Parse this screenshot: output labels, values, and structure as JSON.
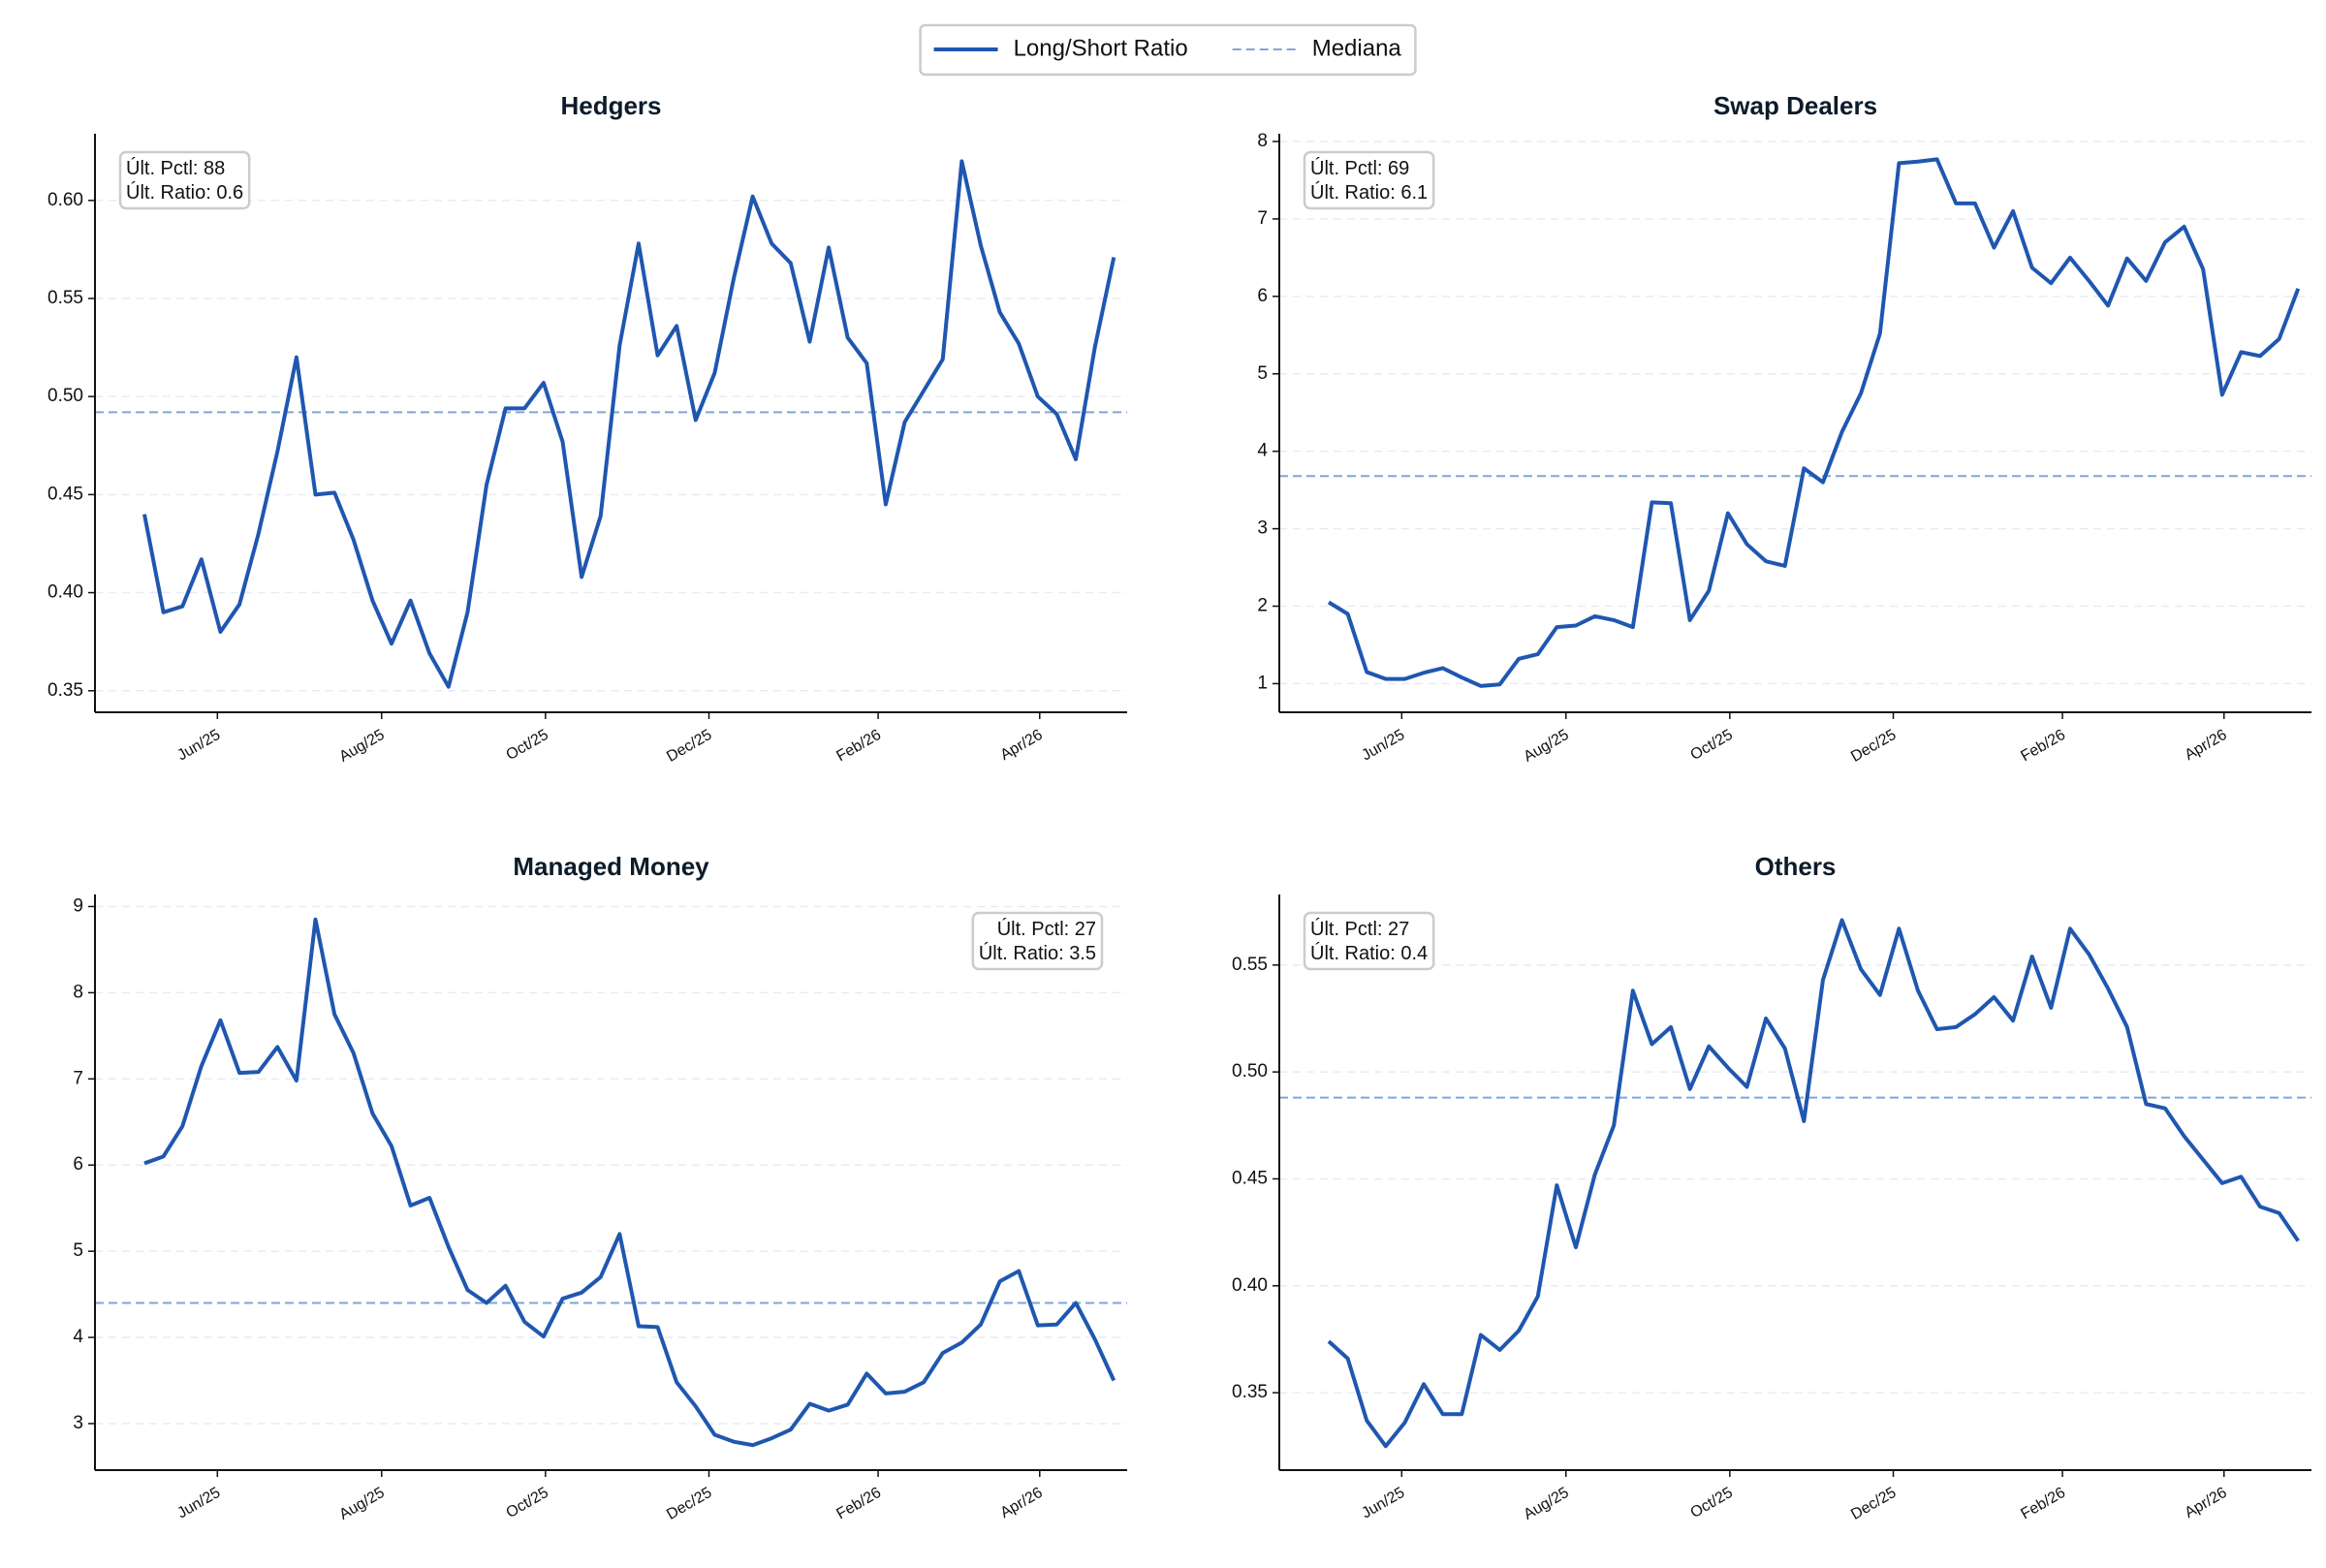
{
  "legend": [
    {
      "name": "Long/Short Ratio",
      "color": "#1f57b0",
      "style": "solid"
    },
    {
      "name": "Mediana",
      "color": "#7fa6d8",
      "style": "dashed"
    }
  ],
  "x_axis": {
    "x": [
      0,
      1,
      2,
      3,
      4,
      5,
      6,
      7,
      8,
      9,
      10,
      11,
      12,
      13,
      14,
      15,
      16,
      17,
      18,
      19,
      20,
      21,
      22,
      23,
      24,
      25,
      26,
      27,
      28,
      29,
      30,
      31,
      32,
      33,
      34,
      35,
      36,
      37,
      38,
      39,
      40,
      41,
      42,
      43,
      44,
      45,
      46,
      47,
      48,
      49,
      50,
      51
    ],
    "xlim": [
      -2.6,
      51.7
    ],
    "xticks": [
      {
        "value": 3.84,
        "label": "Jun/25"
      },
      {
        "value": 12.48,
        "label": "Aug/25"
      },
      {
        "value": 21.1,
        "label": "Oct/25"
      },
      {
        "value": 29.7,
        "label": "Dec/25"
      },
      {
        "value": 38.6,
        "label": "Feb/26"
      },
      {
        "value": 47.1,
        "label": "Apr/26"
      }
    ]
  },
  "chart_data": [
    {
      "type": "line",
      "title": "Hedgers",
      "color": "#1f57b0",
      "median_color": "#7fa6d8",
      "grid": true,
      "annotation_loc": "upper left",
      "annotation": [
        "Últ. Pctl: 88",
        "Últ. Ratio: 0.6"
      ],
      "values": [
        0.44,
        0.39,
        0.393,
        0.417,
        0.38,
        0.394,
        0.43,
        0.472,
        0.52,
        0.45,
        0.451,
        0.427,
        0.396,
        0.374,
        0.396,
        0.369,
        0.352,
        0.39,
        0.455,
        0.494,
        0.494,
        0.507,
        0.477,
        0.408,
        0.439,
        0.526,
        0.578,
        0.521,
        0.536,
        0.488,
        0.512,
        0.56,
        0.602,
        0.578,
        0.568,
        0.528,
        0.576,
        0.53,
        0.517,
        0.445,
        0.487,
        0.503,
        0.519,
        0.62,
        0.577,
        0.543,
        0.527,
        0.5,
        0.491,
        0.468,
        0.525,
        0.571
      ],
      "median": 0.492,
      "ylim": [
        0.339,
        0.634
      ],
      "yticks": [
        0.35,
        {
          "value": 0.4,
          "label": "0.40"
        },
        0.45,
        {
          "value": 0.5,
          "label": "0.50"
        },
        0.55,
        {
          "value": 0.6,
          "label": "0.60"
        }
      ]
    },
    {
      "type": "line",
      "title": "Swap Dealers",
      "color": "#1f57b0",
      "median_color": "#7fa6d8",
      "grid": true,
      "annotation_loc": "upper left",
      "annotation": [
        "Últ. Pctl: 69",
        "Últ. Ratio: 6.1"
      ],
      "values": [
        2.05,
        1.9,
        1.15,
        1.06,
        1.06,
        1.14,
        1.2,
        1.08,
        0.97,
        0.99,
        1.32,
        1.38,
        1.73,
        1.75,
        1.87,
        1.82,
        1.73,
        3.34,
        3.33,
        1.82,
        2.2,
        3.2,
        2.8,
        2.58,
        2.52,
        3.78,
        3.6,
        4.25,
        4.75,
        5.52,
        7.72,
        7.74,
        7.77,
        7.2,
        7.2,
        6.63,
        7.1,
        6.37,
        6.17,
        6.5,
        6.2,
        5.88,
        6.49,
        6.2,
        6.7,
        6.9,
        6.35,
        4.73,
        5.28,
        5.23,
        5.45,
        6.1
      ],
      "median": 3.68,
      "ylim": [
        0.63,
        8.1
      ],
      "yticks": [
        1,
        2,
        3,
        4,
        5,
        6,
        7,
        8
      ]
    },
    {
      "type": "line",
      "title": "Managed Money",
      "color": "#1f57b0",
      "median_color": "#7fa6d8",
      "grid": true,
      "annotation_loc": "upper right",
      "annotation": [
        "Últ. Pctl: 27",
        "Últ. Ratio: 3.5"
      ],
      "values": [
        6.02,
        6.1,
        6.45,
        7.15,
        7.68,
        7.07,
        7.08,
        7.37,
        6.98,
        8.85,
        7.75,
        7.3,
        6.6,
        6.22,
        5.53,
        5.62,
        5.05,
        4.55,
        4.4,
        4.6,
        4.18,
        4.01,
        4.45,
        4.52,
        4.7,
        5.2,
        4.13,
        4.12,
        3.48,
        3.2,
        2.87,
        2.79,
        2.75,
        2.83,
        2.93,
        3.23,
        3.15,
        3.22,
        3.58,
        3.35,
        3.37,
        3.48,
        3.82,
        3.94,
        4.15,
        4.65,
        4.77,
        4.14,
        4.15,
        4.4,
        3.98,
        3.5
      ],
      "median": 4.4,
      "ylim": [
        2.46,
        9.14
      ],
      "yticks": [
        3,
        4,
        5,
        6,
        7,
        8,
        9
      ]
    },
    {
      "type": "line",
      "title": "Others",
      "color": "#1f57b0",
      "median_color": "#7fa6d8",
      "grid": true,
      "annotation_loc": "upper left",
      "annotation": [
        "Últ. Pctl: 27",
        "Últ. Ratio: 0.4"
      ],
      "values": [
        0.374,
        0.366,
        0.337,
        0.325,
        0.336,
        0.354,
        0.34,
        0.34,
        0.377,
        0.37,
        0.379,
        0.395,
        0.447,
        0.418,
        0.452,
        0.475,
        0.538,
        0.513,
        0.521,
        0.492,
        0.512,
        0.502,
        0.493,
        0.525,
        0.511,
        0.477,
        0.543,
        0.571,
        0.548,
        0.536,
        0.567,
        0.538,
        0.52,
        0.521,
        0.527,
        0.535,
        0.524,
        0.554,
        0.53,
        0.567,
        0.555,
        0.539,
        0.521,
        0.485,
        0.483,
        0.47,
        0.459,
        0.448,
        0.451,
        0.437,
        0.434,
        0.421
      ],
      "median": 0.488,
      "ylim": [
        0.3138,
        0.583
      ],
      "yticks": [
        0.35,
        {
          "value": 0.4,
          "label": "0.40"
        },
        0.45,
        {
          "value": 0.5,
          "label": "0.50"
        },
        0.55
      ]
    }
  ]
}
